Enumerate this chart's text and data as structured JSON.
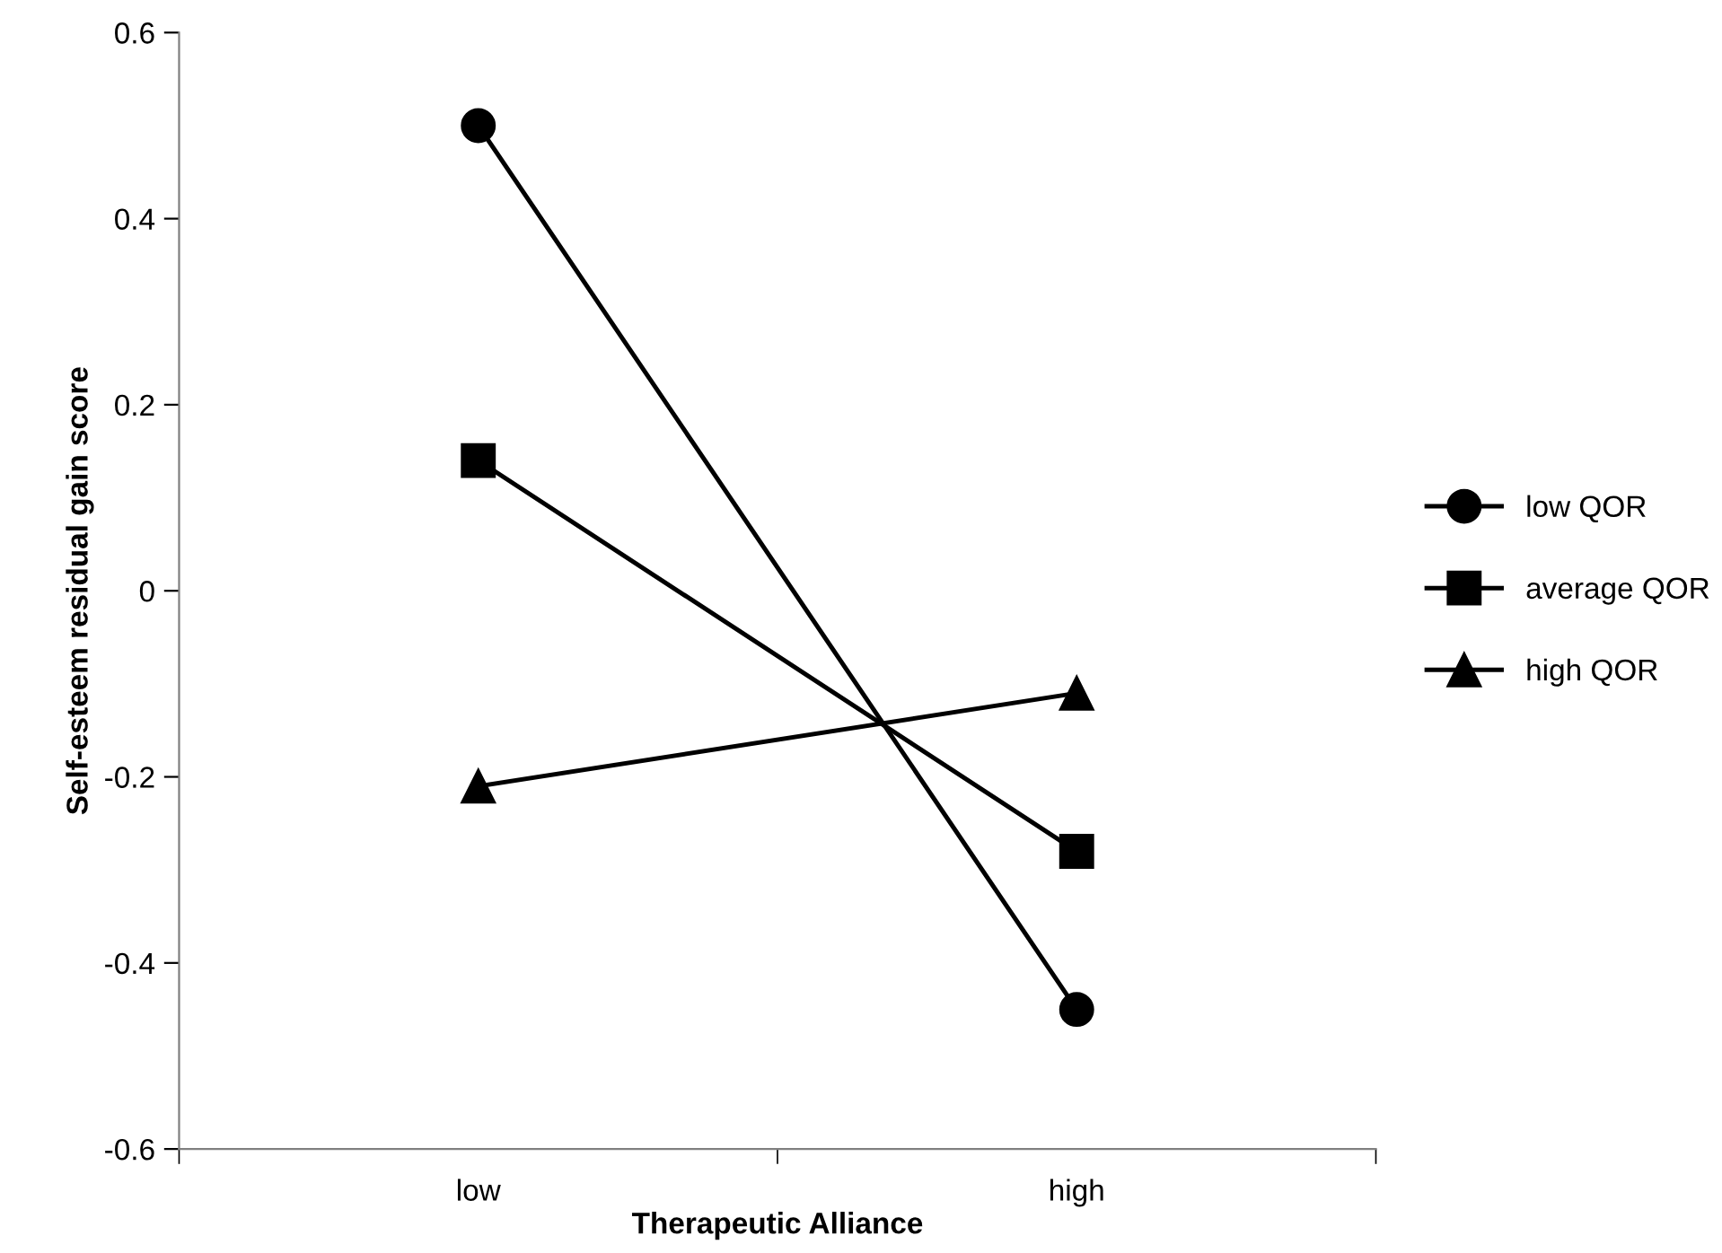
{
  "chart_data": {
    "type": "line",
    "xlabel": "Therapeutic Alliance",
    "ylabel": "Self-esteem residual gain score",
    "categories": [
      "low",
      "high"
    ],
    "series": [
      {
        "name": "low QOR",
        "color": "#000000",
        "marker": "circle",
        "values": [
          0.5,
          -0.45
        ]
      },
      {
        "name": "average QOR",
        "color": "#000000",
        "marker": "square",
        "values": [
          0.14,
          -0.28
        ]
      },
      {
        "name": "high QOR",
        "color": "#000000",
        "marker": "triangle",
        "values": [
          -0.21,
          -0.11
        ]
      }
    ],
    "ylim": [
      -0.6,
      0.6
    ],
    "yticks": [
      -0.6,
      -0.4,
      -0.2,
      0,
      0.2,
      0.4,
      0.6
    ],
    "grid": false,
    "legend": "right",
    "line_style": "solid"
  }
}
